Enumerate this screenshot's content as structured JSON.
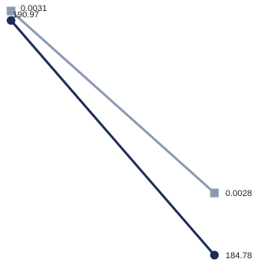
{
  "chart_data": {
    "type": "line",
    "categories": [
      "",
      ""
    ],
    "title": "",
    "xlabel": "",
    "ylabel": "",
    "grid": false,
    "series": [
      {
        "values": [
          0.0031,
          0.0028
        ],
        "value_labels": [
          "0.0031",
          "0.0028"
        ],
        "color": "#8a9bb3",
        "marker": "square",
        "ylim": [
          0.0028,
          0.0031
        ]
      },
      {
        "values": [
          190.97,
          184.78
        ],
        "value_labels": [
          "190.97",
          "184.78"
        ],
        "color": "#1b2e57",
        "marker": "circle",
        "ylim": [
          184.78,
          190.97
        ]
      }
    ]
  }
}
